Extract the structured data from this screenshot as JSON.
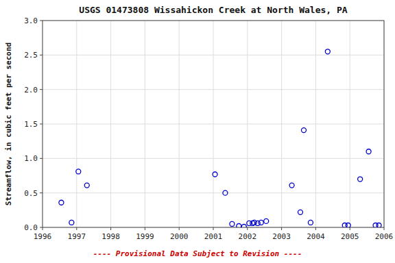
{
  "chart_data": {
    "type": "scatter",
    "title": "USGS 01473808 Wissahickon Creek at North Wales, PA",
    "y_label": "Streamflow, in cubic feet per second",
    "x": [
      1996.55,
      1996.85,
      1997.05,
      1997.3,
      2001.05,
      2001.35,
      2001.55,
      2001.75,
      2001.9,
      2002.05,
      2002.15,
      2002.2,
      2002.3,
      2002.4,
      2002.55,
      2003.3,
      2003.55,
      2003.65,
      2003.85,
      2004.35,
      2004.85,
      2004.95,
      2005.3,
      2005.55,
      2005.75,
      2005.85
    ],
    "values": [
      0.36,
      0.07,
      0.81,
      0.61,
      0.77,
      0.5,
      0.05,
      0.02,
      0.01,
      0.06,
      0.06,
      0.07,
      0.06,
      0.07,
      0.09,
      0.61,
      0.22,
      1.41,
      0.07,
      2.55,
      0.03,
      0.03,
      0.7,
      1.1,
      0.03,
      0.03
    ],
    "color": "#0000cc",
    "marker": "open-circle",
    "xlim": [
      1996,
      2006
    ],
    "ylim": [
      0.0,
      3.0
    ],
    "xticks": [
      1996,
      1997,
      1998,
      1999,
      2000,
      2001,
      2002,
      2003,
      2004,
      2005,
      2006
    ],
    "yticks": [
      {
        "value": 0.0,
        "label": "0.0"
      },
      0.5,
      {
        "value": 1.0,
        "label": "1.0"
      },
      1.5,
      {
        "value": 2.0,
        "label": "2.0"
      },
      2.5,
      {
        "value": 3.0,
        "label": "3.0"
      }
    ],
    "grid": true,
    "annotations": [
      {
        "text": "---- Provisional Data Subject to Revision ----",
        "color": "#cc0000"
      }
    ]
  }
}
